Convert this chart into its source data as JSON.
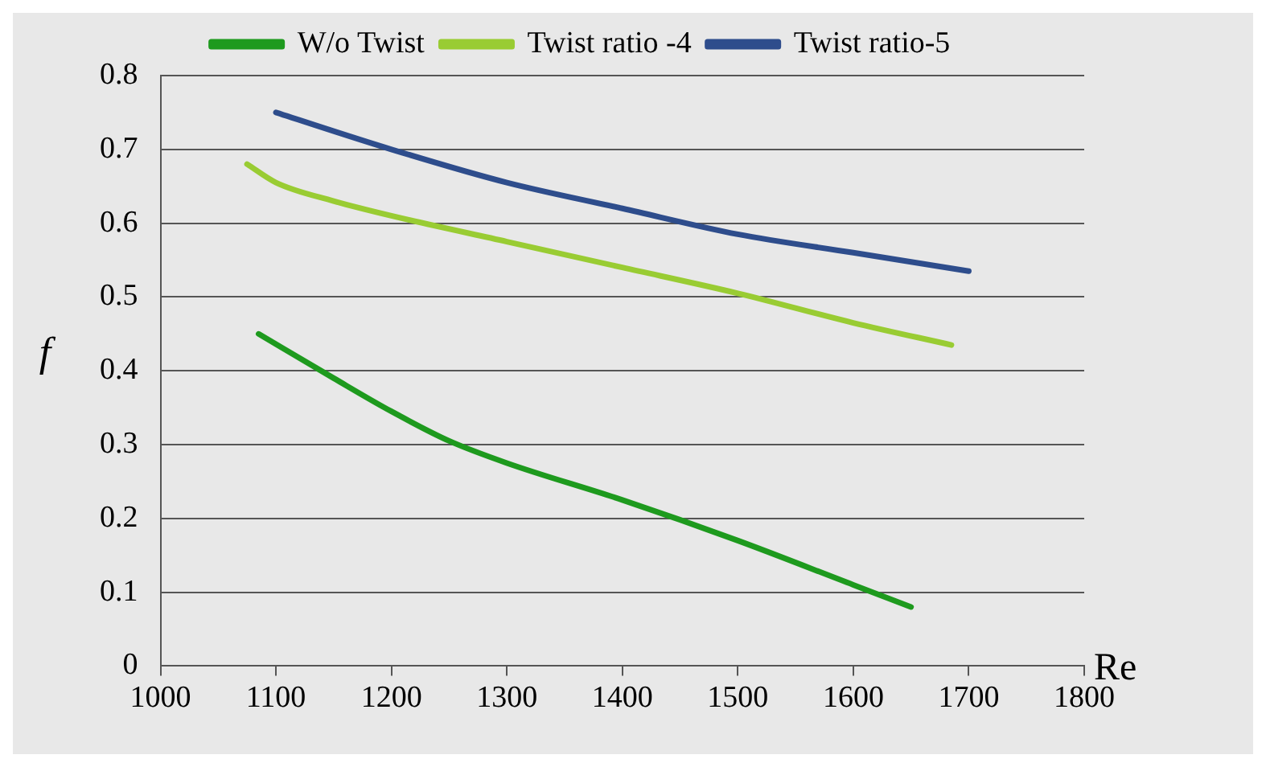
{
  "chart_data": {
    "type": "line",
    "xlabel": "Re",
    "ylabel": "f",
    "xlim": [
      1000,
      1800
    ],
    "xticks": [
      1000,
      1100,
      1200,
      1300,
      1400,
      1500,
      1600,
      1700,
      1800
    ],
    "ylim": [
      0,
      0.8
    ],
    "yticks": [
      0,
      0.1,
      0.2,
      0.3,
      0.4,
      0.5,
      0.6,
      0.7,
      0.8
    ],
    "grid": "y",
    "legend": "top",
    "marker": "none",
    "line_style": "solid",
    "series": [
      {
        "name": "W/o Twist",
        "color": "#1e9a1e",
        "x": [
          1085,
          1150,
          1200,
          1250,
          1300,
          1400,
          1500,
          1600,
          1650
        ],
        "values": [
          0.45,
          0.39,
          0.345,
          0.305,
          0.275,
          0.225,
          0.17,
          0.11,
          0.08
        ]
      },
      {
        "name": "Twist ratio -4",
        "color": "#99cc33",
        "x": [
          1075,
          1100,
          1150,
          1200,
          1300,
          1400,
          1500,
          1600,
          1685
        ],
        "values": [
          0.68,
          0.655,
          0.63,
          0.61,
          0.575,
          0.54,
          0.505,
          0.465,
          0.435
        ]
      },
      {
        "name": "Twist ratio-5",
        "color": "#2e4d8c",
        "x": [
          1100,
          1200,
          1300,
          1400,
          1500,
          1600,
          1700
        ],
        "values": [
          0.75,
          0.7,
          0.655,
          0.62,
          0.585,
          0.56,
          0.535
        ]
      }
    ]
  }
}
